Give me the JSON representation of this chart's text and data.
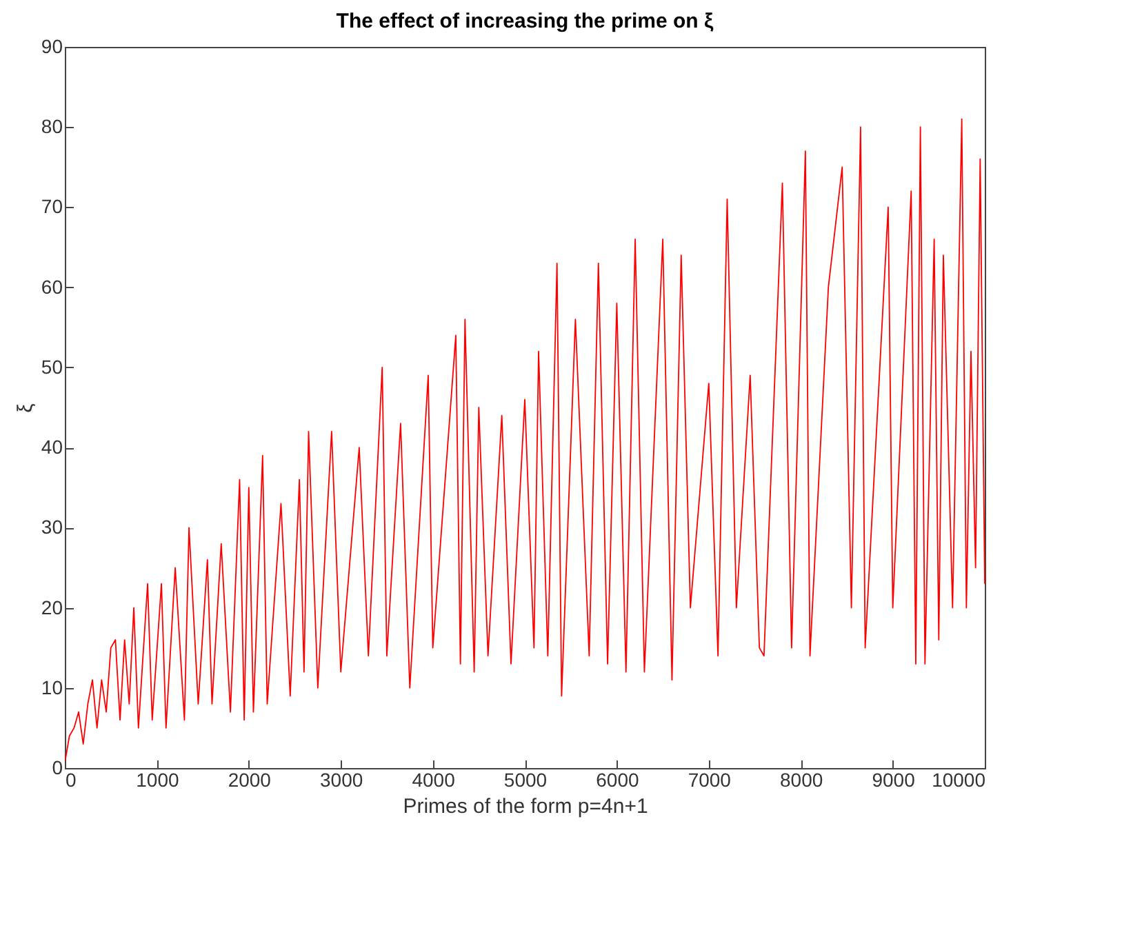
{
  "chart_data": {
    "type": "line",
    "title": "The effect of increasing the prime on ξ",
    "xlabel": "Primes of the form p=4n+1",
    "ylabel": "ξ",
    "xlim": [
      0,
      10000
    ],
    "ylim": [
      0,
      90
    ],
    "xticks": [
      0,
      1000,
      2000,
      3000,
      4000,
      5000,
      6000,
      7000,
      8000,
      9000,
      10000
    ],
    "yticks": [
      0,
      10,
      20,
      30,
      40,
      50,
      60,
      70,
      80,
      90
    ],
    "grid": false,
    "x": [
      5,
      50,
      100,
      150,
      200,
      250,
      300,
      350,
      400,
      450,
      500,
      550,
      600,
      650,
      700,
      750,
      800,
      900,
      950,
      1050,
      1100,
      1200,
      1300,
      1350,
      1450,
      1550,
      1600,
      1700,
      1800,
      1900,
      1950,
      2000,
      2050,
      2150,
      2200,
      2350,
      2450,
      2550,
      2600,
      2650,
      2750,
      2900,
      3000,
      3200,
      3300,
      3450,
      3500,
      3650,
      3750,
      3950,
      4000,
      4250,
      4300,
      4350,
      4450,
      4500,
      4600,
      4750,
      4850,
      5000,
      5100,
      5150,
      5250,
      5350,
      5400,
      5550,
      5700,
      5800,
      5900,
      6000,
      6100,
      6200,
      6300,
      6500,
      6600,
      6700,
      6800,
      7000,
      7100,
      7200,
      7300,
      7450,
      7550,
      7600,
      7800,
      7900,
      8050,
      8100,
      8300,
      8450,
      8550,
      8650,
      8700,
      8950,
      9000,
      9200,
      9250,
      9300,
      9350,
      9450,
      9500,
      9550,
      9650,
      9750,
      9800,
      9850,
      9900,
      9950,
      10000
    ],
    "series": [
      {
        "color": "#ff0000",
        "values": [
          1,
          4,
          5,
          7,
          3,
          8,
          11,
          5,
          11,
          7,
          15,
          16,
          6,
          16,
          8,
          20,
          5,
          23,
          6,
          23,
          5,
          25,
          6,
          30,
          8,
          26,
          8,
          28,
          7,
          36,
          6,
          35,
          7,
          39,
          8,
          33,
          9,
          36,
          12,
          42,
          10,
          42,
          12,
          40,
          14,
          50,
          14,
          43,
          10,
          49,
          15,
          54,
          13,
          56,
          12,
          45,
          14,
          44,
          13,
          46,
          15,
          52,
          14,
          63,
          9,
          56,
          14,
          63,
          13,
          58,
          12,
          66,
          12,
          66,
          11,
          64,
          20,
          48,
          14,
          71,
          20,
          49,
          15,
          14,
          73,
          15,
          77,
          14,
          60,
          75,
          20,
          80,
          15,
          70,
          20,
          72,
          13,
          80,
          13,
          66,
          16,
          64,
          20,
          81,
          20,
          52,
          25,
          76,
          23
        ]
      }
    ]
  }
}
